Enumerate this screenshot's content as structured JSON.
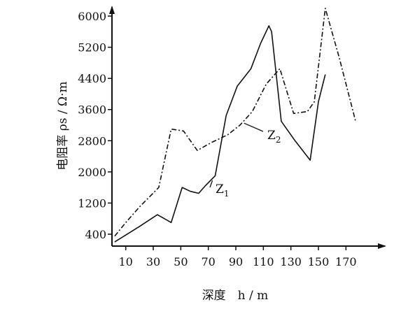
{
  "chart_data": {
    "type": "line",
    "xlabel": "深度　h / m",
    "ylabel": "电阻率 ρs / Ω·m",
    "x_ticks": [
      10,
      30,
      50,
      70,
      90,
      110,
      130,
      150,
      170
    ],
    "y_ticks": [
      400,
      1200,
      2000,
      2800,
      3600,
      4400,
      5200,
      6000
    ],
    "xlim": [
      0,
      180
    ],
    "ylim": [
      0,
      6400
    ],
    "grid": false,
    "legend": "none",
    "series": [
      {
        "name": "Z1",
        "name_main": "Z",
        "name_sub": "1",
        "style": "solid",
        "color": "#111111",
        "x": [
          2,
          20,
          33,
          43,
          51,
          57,
          63,
          68,
          75,
          83,
          91,
          101,
          108,
          114,
          116,
          123,
          133,
          144,
          150,
          155
        ],
        "y": [
          200,
          600,
          900,
          700,
          1600,
          1500,
          1450,
          1650,
          1900,
          3450,
          4200,
          4650,
          5300,
          5750,
          5600,
          3300,
          2800,
          2300,
          3800,
          4500
        ]
      },
      {
        "name": "Z2",
        "name_main": "Z",
        "name_sub": "2",
        "style": "dashdot",
        "color": "#111111",
        "x": [
          2,
          10,
          20,
          34,
          43,
          52,
          62,
          72,
          84,
          93,
          102,
          112,
          122,
          132,
          142,
          147,
          155,
          165,
          177
        ],
        "y": [
          350,
          700,
          1100,
          1600,
          3100,
          3050,
          2550,
          2750,
          2950,
          3200,
          3550,
          4250,
          4650,
          3500,
          3550,
          3800,
          6200,
          4950,
          3300
        ]
      }
    ]
  }
}
